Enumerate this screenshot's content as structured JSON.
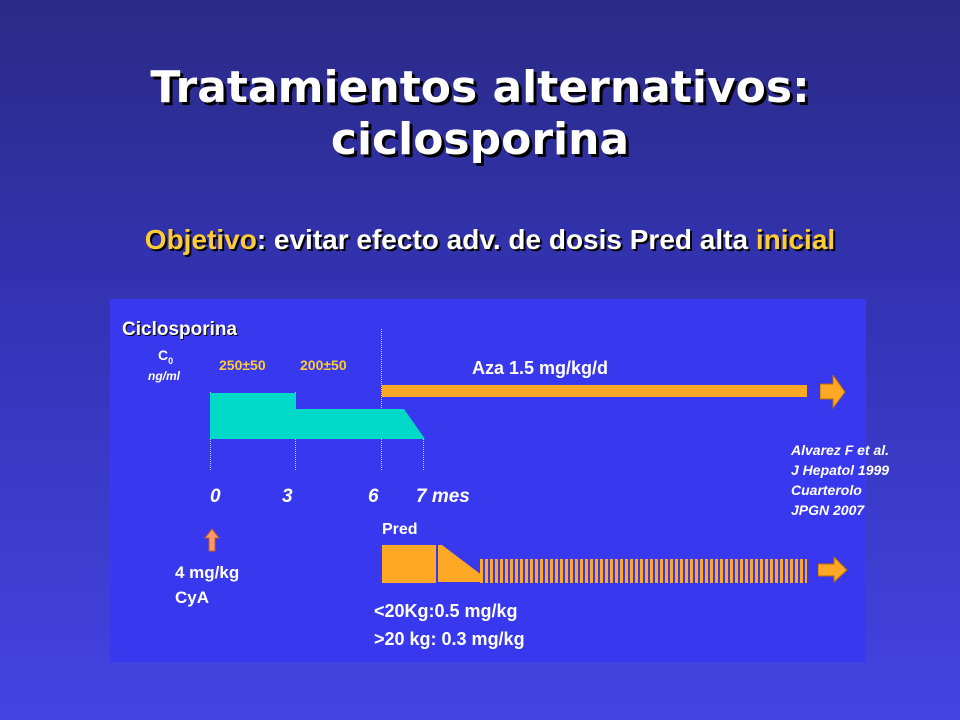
{
  "title": {
    "line1": "Tratamientos alternativos:",
    "line2": "ciclosporina"
  },
  "subtitle": {
    "objetivo": "Objetivo",
    "text": ": evitar efecto adv. de dosis Pred alta ",
    "inicial": "inicial"
  },
  "diagram": {
    "ciclosporina_label": "Ciclosporina",
    "c0_label": "C",
    "c0_sub": "0",
    "c0_units": "ng/ml",
    "level_1": "250±50",
    "level_2": "200±50",
    "aza_label": "Aza 1.5 mg/kg/d",
    "timeline": [
      "0",
      "3",
      "6",
      "7 mes"
    ],
    "pred_label": "Pred",
    "cya_dose_line1": "4 mg/kg",
    "cya_dose_line2": "CyA",
    "pred_dose_line1": "<20Kg:0.5 mg/kg",
    "pred_dose_line2": ">20 kg: 0.3 mg/kg",
    "references": [
      "Alvarez F et al.",
      "J Hepatol 1999",
      "Cuarterolo",
      "JPGN 2007"
    ]
  },
  "colors": {
    "background": "#3434b8",
    "panel": "#3838ee",
    "ciclosporina_bar": "#00d8c8",
    "aza_pred_bar": "#ffa826",
    "highlight_text": "#ffcc33"
  }
}
